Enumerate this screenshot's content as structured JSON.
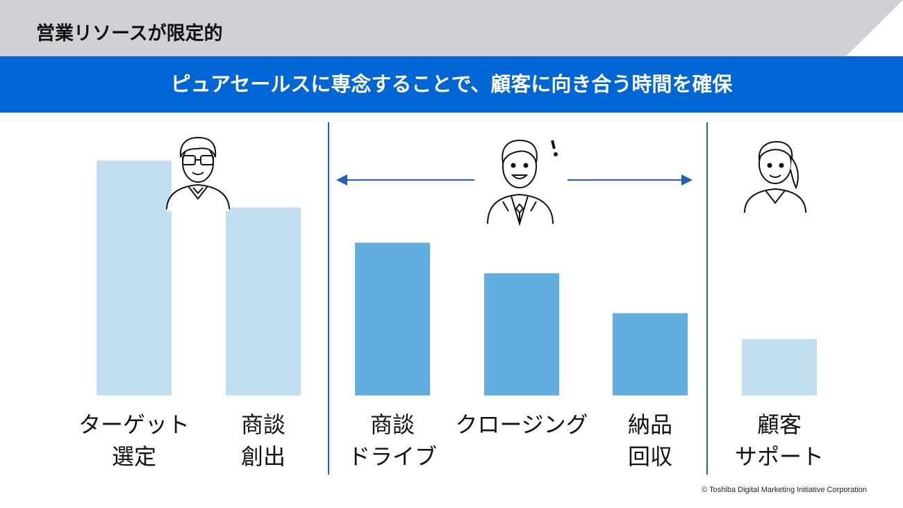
{
  "header": {
    "title": "営業リソースが限定的",
    "banner": "ピュアセールスに専念することで、顧客に向き合う時間を確保"
  },
  "copyright": "© Toshiba Digital Marketing Initiative Corporation",
  "colors": {
    "header_gray": "#d0d0d5",
    "banner_blue": "#0066d6",
    "light_bar": "#c2dff2",
    "dark_bar": "#62aee0",
    "divider": "#1e63b8"
  },
  "icons": [
    "person-glasses-icon",
    "businessman-exclaim-icon",
    "woman-support-icon",
    "double-arrow-icon"
  ],
  "chart_data": {
    "type": "bar",
    "title": "",
    "xlabel": "",
    "ylabel": "",
    "ylim": [
      0,
      100
    ],
    "axes_visible": false,
    "grid": false,
    "categories": [
      [
        "ターゲット",
        "選定"
      ],
      [
        "商談",
        "創出"
      ],
      [
        "商談",
        "ドライブ"
      ],
      [
        "クロージング"
      ],
      [
        "納品",
        "回収"
      ],
      [
        "顧客",
        "サポート"
      ]
    ],
    "values": [
      100,
      80,
      65,
      52,
      35,
      24
    ],
    "highlight": [
      false,
      false,
      true,
      true,
      true,
      false
    ],
    "groups": [
      "marketing",
      "marketing",
      "sales",
      "sales",
      "sales",
      "support"
    ]
  }
}
